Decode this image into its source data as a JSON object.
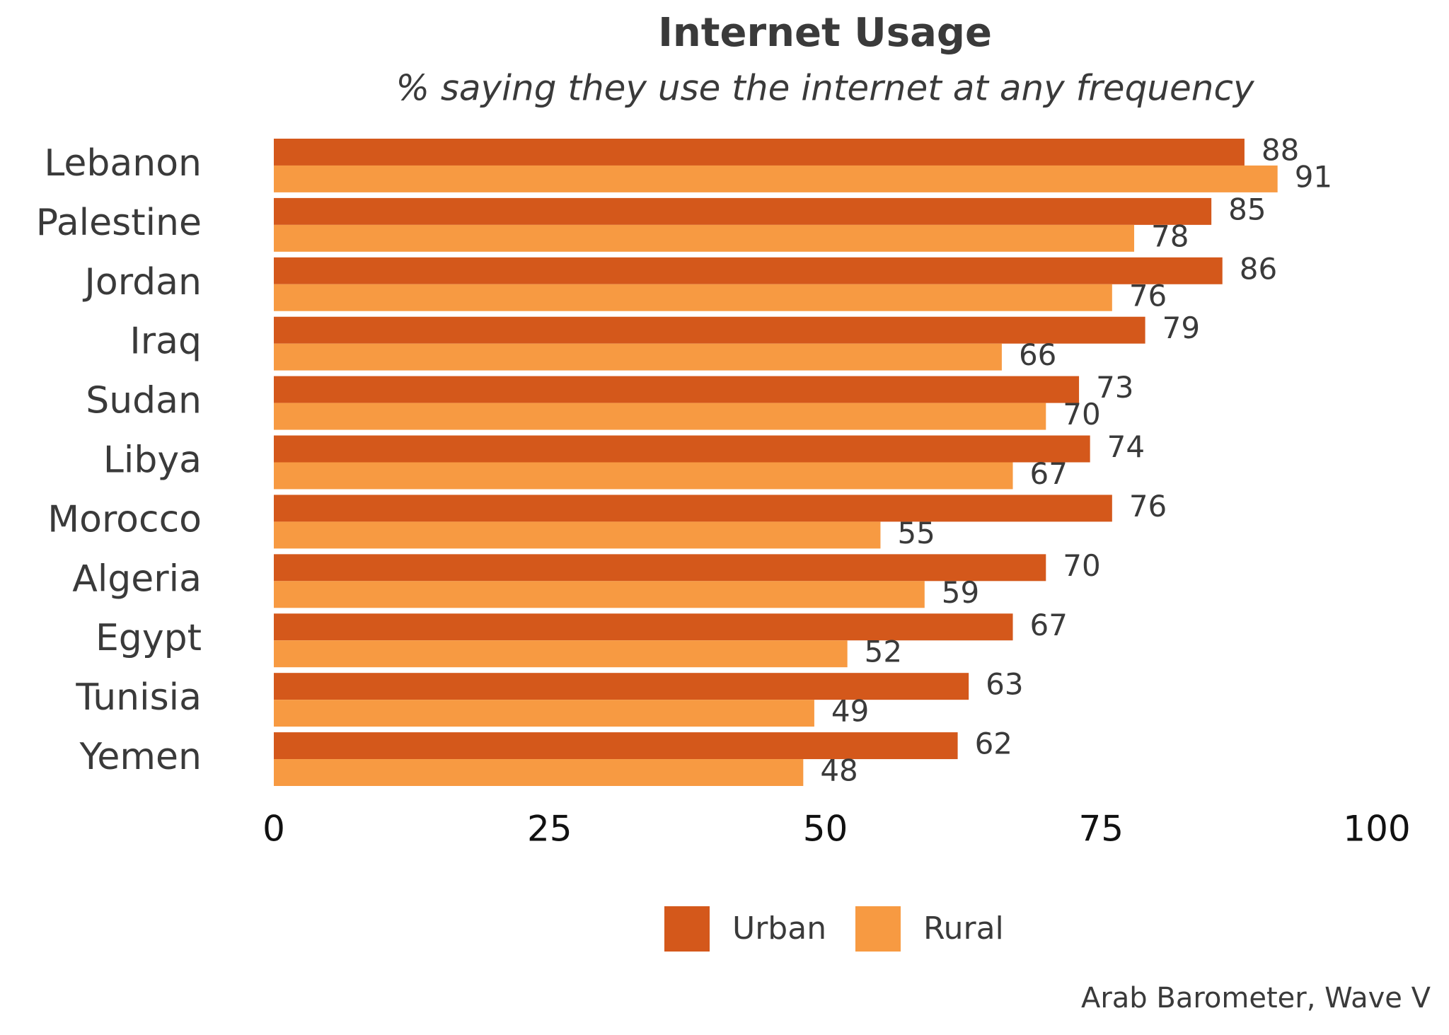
{
  "chart_data": {
    "type": "bar",
    "title": "Internet Usage",
    "subtitle": "% saying they use the internet at any frequency",
    "source": "Arab Barometer, Wave V",
    "categories": [
      "Lebanon",
      "Palestine",
      "Jordan",
      "Iraq",
      "Sudan",
      "Libya",
      "Morocco",
      "Algeria",
      "Egypt",
      "Tunisia",
      "Yemen"
    ],
    "series": [
      {
        "name": "Urban",
        "color": "#d4581b",
        "values": [
          88,
          85,
          86,
          79,
          73,
          74,
          76,
          70,
          67,
          63,
          62
        ]
      },
      {
        "name": "Rural",
        "color": "#f79a42",
        "values": [
          91,
          78,
          76,
          66,
          70,
          67,
          55,
          59,
          52,
          49,
          48
        ]
      }
    ],
    "xlim": [
      0,
      100
    ],
    "xticks": [
      0,
      25,
      50,
      75,
      100
    ]
  }
}
